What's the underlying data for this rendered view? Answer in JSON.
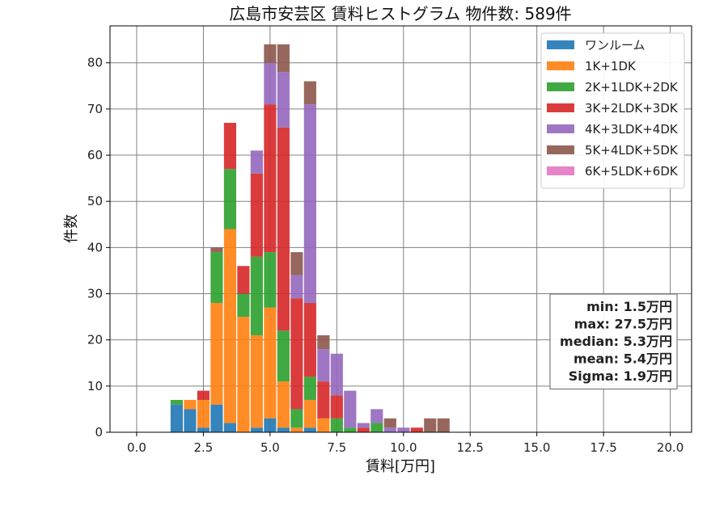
{
  "chart_data": {
    "type": "bar",
    "stacked": true,
    "title": "広島市安芸区 賃料ヒストグラム 物件数: 589件",
    "xlabel": "賃料[万円]",
    "ylabel": "件数",
    "xlim": [
      -1.0,
      20.8
    ],
    "ylim": [
      0,
      88
    ],
    "xticks": [
      "0.0",
      "2.5",
      "5.0",
      "7.5",
      "10.0",
      "12.5",
      "15.0",
      "17.5",
      "20.0"
    ],
    "xtick_values": [
      0,
      2.5,
      5,
      7.5,
      10,
      12.5,
      15,
      17.5,
      20
    ],
    "yticks": [
      "0",
      "10",
      "20",
      "30",
      "40",
      "50",
      "60",
      "70",
      "80"
    ],
    "ytick_values": [
      0,
      10,
      20,
      30,
      40,
      50,
      60,
      70,
      80
    ],
    "grid": true,
    "legend_position": "top-right",
    "bin_width": 0.5,
    "x": [
      1.5,
      2.0,
      2.5,
      3.0,
      3.5,
      4.0,
      4.5,
      5.0,
      5.5,
      6.0,
      6.5,
      7.0,
      7.5,
      8.0,
      8.5,
      9.0,
      9.5,
      10.0,
      10.5,
      11.0,
      11.5
    ],
    "series": [
      {
        "name": "ワンルーム",
        "color": "#1f77b4",
        "values": [
          6,
          5,
          1,
          6,
          2,
          0,
          1,
          3,
          1,
          0,
          1,
          0,
          0,
          0,
          0,
          0,
          0,
          0,
          0,
          0,
          0
        ]
      },
      {
        "name": "1K+1DK",
        "color": "#ff7f0e",
        "values": [
          0,
          2,
          6,
          22,
          42,
          25,
          20,
          24,
          10,
          1,
          6,
          3,
          0,
          0,
          0,
          0,
          0,
          0,
          0,
          0,
          0
        ]
      },
      {
        "name": "2K+1LDK+2DK",
        "color": "#2ca02c",
        "values": [
          1,
          0,
          0,
          11,
          13,
          5,
          17,
          12,
          11,
          4,
          5,
          0,
          3,
          1,
          0,
          2,
          0,
          0,
          0,
          0,
          0
        ]
      },
      {
        "name": "3K+2LDK+3DK",
        "color": "#d62728",
        "values": [
          0,
          0,
          2,
          0,
          10,
          6,
          18,
          32,
          44,
          24,
          16,
          8,
          5,
          0,
          1,
          0,
          0,
          0,
          1,
          0,
          0
        ]
      },
      {
        "name": "4K+3LDK+4DK",
        "color": "#9467bd",
        "values": [
          0,
          0,
          0,
          0,
          0,
          0,
          5,
          9,
          12,
          5,
          43,
          7,
          9,
          8,
          1,
          3,
          1,
          1,
          0,
          0,
          0
        ]
      },
      {
        "name": "5K+4LDK+5DK",
        "color": "#8c564b",
        "values": [
          0,
          0,
          0,
          1,
          0,
          0,
          0,
          4,
          6,
          5,
          5,
          3,
          0,
          0,
          0,
          0,
          2,
          0,
          0,
          3,
          3
        ]
      },
      {
        "name": "6K+5LDK+6DK",
        "color": "#e377c2",
        "values": [
          0,
          0,
          0,
          0,
          0,
          0,
          0,
          0,
          0,
          0,
          0,
          0,
          0,
          0,
          0,
          0,
          0,
          0,
          0,
          0,
          0
        ]
      }
    ],
    "stats": [
      "min: 1.5万円",
      "max: 27.5万円",
      "median: 5.3万円",
      "mean: 5.4万円",
      "Sigma: 1.9万円"
    ]
  }
}
